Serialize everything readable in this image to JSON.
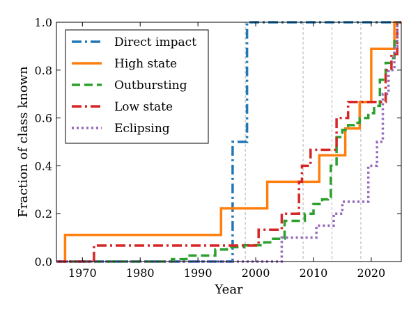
{
  "chart_data": {
    "type": "line",
    "title": "",
    "xlabel": "Year",
    "ylabel": "Fraction of class known",
    "xlim": [
      1965.5,
      2025.2
    ],
    "ylim": [
      0.0,
      1.0
    ],
    "xticks": [
      1970,
      1980,
      1990,
      2000,
      2010,
      2020
    ],
    "yticks": [
      0.0,
      0.2,
      0.4,
      0.6,
      0.8,
      1.0
    ],
    "vlines": [
      1998.2,
      2008.2,
      2013.2,
      2018.2
    ],
    "grid": false,
    "legend_position": "upper-left",
    "series": [
      {
        "name": "Direct impact",
        "color": "#1f77b4",
        "dash": "14 5 3 5",
        "steps": [
          [
            1995.5,
            0.0
          ],
          [
            1996.0,
            0.5
          ],
          [
            1998.5,
            1.0
          ],
          [
            2025.0,
            1.0
          ]
        ]
      },
      {
        "name": "High state",
        "color": "#ff7f0e",
        "dash": "",
        "steps": [
          [
            1967.0,
            0.0
          ],
          [
            1967.0,
            0.111
          ],
          [
            1994.0,
            0.222
          ],
          [
            2002.0,
            0.333
          ],
          [
            2011.0,
            0.444
          ],
          [
            2015.5,
            0.556
          ],
          [
            2018.0,
            0.667
          ],
          [
            2020.0,
            0.889
          ],
          [
            2024.0,
            1.0
          ]
        ]
      },
      {
        "name": "Outbursting",
        "color": "#2ca02c",
        "dash": "12 6",
        "steps": [
          [
            1967.0,
            0.0
          ],
          [
            1985.5,
            0.01
          ],
          [
            1988.0,
            0.025
          ],
          [
            1993.0,
            0.05
          ],
          [
            1995.0,
            0.06
          ],
          [
            1998.0,
            0.068
          ],
          [
            2001.5,
            0.08
          ],
          [
            2003.0,
            0.095
          ],
          [
            2005.0,
            0.17
          ],
          [
            2008.5,
            0.2
          ],
          [
            2010.0,
            0.24
          ],
          [
            2011.5,
            0.26
          ],
          [
            2012.5,
            0.27
          ],
          [
            2013.0,
            0.4
          ],
          [
            2014.0,
            0.52
          ],
          [
            2015.0,
            0.55
          ],
          [
            2016.0,
            0.57
          ],
          [
            2017.0,
            0.58
          ],
          [
            2018.0,
            0.6
          ],
          [
            2019.5,
            0.62
          ],
          [
            2020.5,
            0.65
          ],
          [
            2021.5,
            0.76
          ],
          [
            2022.5,
            0.83
          ],
          [
            2023.5,
            0.85
          ],
          [
            2024.0,
            0.92
          ],
          [
            2024.5,
            1.0
          ]
        ]
      },
      {
        "name": "Low state",
        "color": "#d62728",
        "dash": "14 5 3 5",
        "steps": [
          [
            1967.0,
            0.0
          ],
          [
            1972.0,
            0.067
          ],
          [
            2000.5,
            0.133
          ],
          [
            2004.5,
            0.2
          ],
          [
            2007.5,
            0.333
          ],
          [
            2008.0,
            0.4
          ],
          [
            2009.5,
            0.467
          ],
          [
            2014.0,
            0.6
          ],
          [
            2016.0,
            0.667
          ],
          [
            2022.5,
            0.8
          ],
          [
            2023.5,
            0.867
          ],
          [
            2024.5,
            1.0
          ]
        ]
      },
      {
        "name": "Eclipsing",
        "color": "#9467bd",
        "dash": "3 4",
        "steps": [
          [
            1967.0,
            0.0
          ],
          [
            2004.5,
            0.1
          ],
          [
            2010.5,
            0.15
          ],
          [
            2013.5,
            0.2
          ],
          [
            2015.0,
            0.25
          ],
          [
            2019.5,
            0.4
          ],
          [
            2021.0,
            0.5
          ],
          [
            2022.0,
            0.7
          ],
          [
            2023.0,
            0.8
          ],
          [
            2024.0,
            0.9
          ],
          [
            2024.5,
            1.0
          ]
        ]
      }
    ]
  }
}
